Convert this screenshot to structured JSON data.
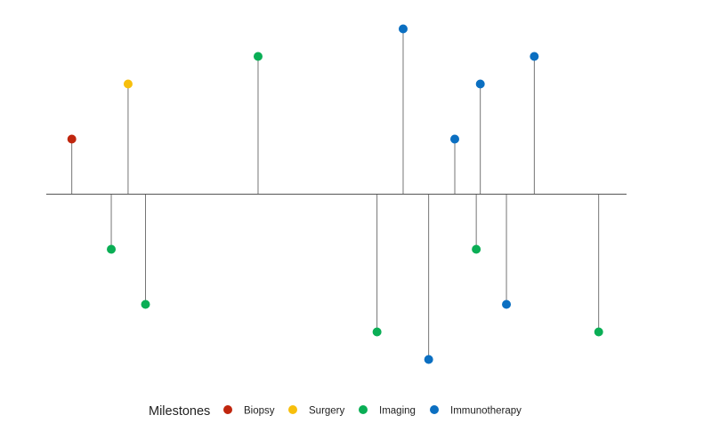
{
  "chart_data": {
    "type": "lollipop-timeline",
    "legend": {
      "title": "Milestones",
      "position": "bottom",
      "items": [
        {
          "label": "Biopsy",
          "color": "#C0260E"
        },
        {
          "label": "Surgery",
          "color": "#F7BF0C"
        },
        {
          "label": "Imaging",
          "color": "#0AAE55"
        },
        {
          "label": "Immunotherapy",
          "color": "#0B6FC1"
        }
      ]
    },
    "xlim": [
      0,
      100
    ],
    "ylim": [
      -6,
      6
    ],
    "events": [
      {
        "x": 4.4,
        "y": 2,
        "category": "Biopsy"
      },
      {
        "x": 11.2,
        "y": -2,
        "category": "Imaging"
      },
      {
        "x": 14.1,
        "y": 4,
        "category": "Surgery"
      },
      {
        "x": 17.1,
        "y": -4,
        "category": "Imaging"
      },
      {
        "x": 36.5,
        "y": 5,
        "category": "Imaging"
      },
      {
        "x": 57.0,
        "y": -5,
        "category": "Imaging"
      },
      {
        "x": 61.5,
        "y": 6,
        "category": "Immunotherapy"
      },
      {
        "x": 65.9,
        "y": -6,
        "category": "Immunotherapy"
      },
      {
        "x": 70.4,
        "y": 2,
        "category": "Immunotherapy"
      },
      {
        "x": 74.8,
        "y": 4,
        "category": "Immunotherapy"
      },
      {
        "x": 74.1,
        "y": -2,
        "category": "Imaging"
      },
      {
        "x": 79.3,
        "y": -4,
        "category": "Immunotherapy"
      },
      {
        "x": 84.1,
        "y": 5,
        "category": "Immunotherapy"
      },
      {
        "x": 95.2,
        "y": -5,
        "category": "Imaging"
      }
    ]
  }
}
